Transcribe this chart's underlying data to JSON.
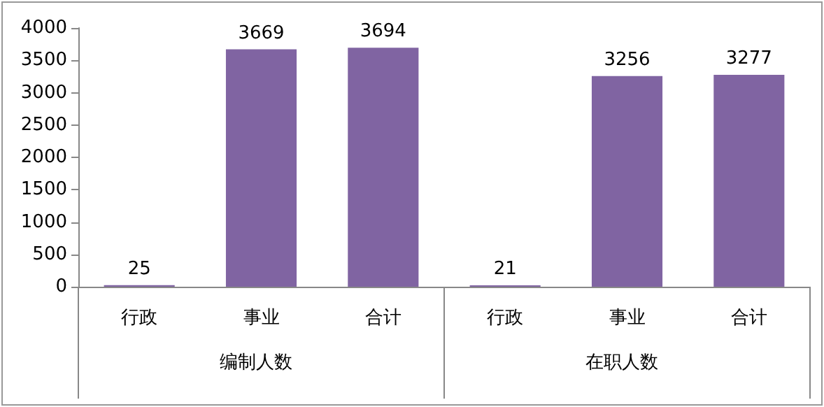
{
  "chart_data": {
    "type": "bar",
    "categories": [
      "行政",
      "事业",
      "合计",
      "行政",
      "事业",
      "合计"
    ],
    "values": [
      25,
      3669,
      3694,
      21,
      3256,
      3277
    ],
    "color": "#8064a2",
    "ylim": [
      0,
      4000
    ],
    "yticks": [
      0,
      500,
      1000,
      1500,
      2000,
      2500,
      3000,
      3500,
      4000
    ],
    "grid": false,
    "data_labels": true,
    "annotations": [
      "编制人数",
      "在职人数"
    ]
  }
}
